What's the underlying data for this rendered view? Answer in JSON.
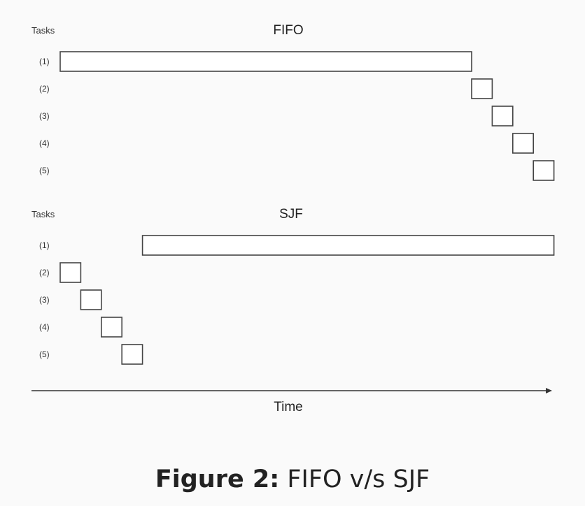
{
  "panels": [
    {
      "title": "FIFO",
      "axis_label": "Tasks",
      "tasks": [
        {
          "label": "(1)",
          "start": 0,
          "end": 20
        },
        {
          "label": "(2)",
          "start": 20,
          "end": 21
        },
        {
          "label": "(3)",
          "start": 21,
          "end": 22
        },
        {
          "label": "(4)",
          "start": 22,
          "end": 23
        },
        {
          "label": "(5)",
          "start": 23,
          "end": 24
        }
      ]
    },
    {
      "title": "SJF",
      "axis_label": "Tasks",
      "tasks": [
        {
          "label": "(1)",
          "start": 4,
          "end": 24
        },
        {
          "label": "(2)",
          "start": 0,
          "end": 1
        },
        {
          "label": "(3)",
          "start": 1,
          "end": 2
        },
        {
          "label": "(4)",
          "start": 2,
          "end": 3
        },
        {
          "label": "(5)",
          "start": 3,
          "end": 4
        }
      ]
    }
  ],
  "time_axis_label": "Time",
  "caption": {
    "prefix": "Figure 2:",
    "text": "FIFO v/s SJF"
  }
}
